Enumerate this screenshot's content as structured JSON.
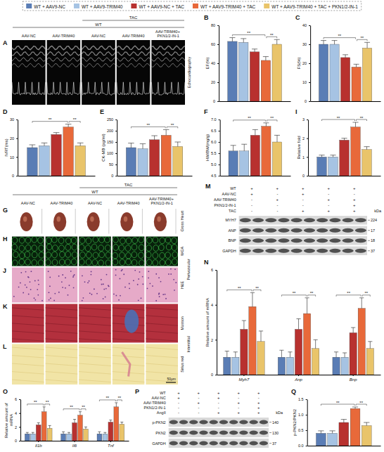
{
  "figure_legend": {
    "items": [
      {
        "name": "WT + AAV9-NC",
        "color": "#5a7db5"
      },
      {
        "name": "WT + AAV9-TRIM40",
        "color": "#a6c3e3"
      },
      {
        "name": "WT + AAV9-NC + TAC",
        "color": "#b8312f"
      },
      {
        "name": "WT + AAV9-TRIM40 + TAC",
        "color": "#e8693a"
      },
      {
        "name": "WT + AAV9-TRIM40 + TAC + PKN1/2-IN-1",
        "color": "#e9c46a"
      }
    ]
  },
  "image_panels": [
    {
      "columns": [
        "AAV-NC",
        "AAV-TRIM40",
        "AAV-NC",
        "AAV-TRIM40",
        "AAV-TRIM40+ PKN1/2-IN-1"
      ],
      "genotype": "WT",
      "treatment": {
        "label": "TAC",
        "columns": [
          2,
          4
        ]
      },
      "rows": [
        {
          "letter": "A",
          "label": "Echocardiography"
        }
      ]
    },
    {
      "columns": [
        "AAV-NC",
        "AAV-TRIM40",
        "AAV-NC",
        "AAV-TRIM40",
        "AAV-TRIM40+ PKN1/2-IN-1"
      ],
      "genotype": "WT",
      "treatment": {
        "label": "TAC",
        "columns": [
          2,
          4
        ]
      },
      "rows": [
        {
          "letter": "G",
          "label": "Gross Heart"
        },
        {
          "letter": "H",
          "label": "WGA"
        },
        {
          "letter": "J",
          "label": "H&E"
        },
        {
          "letter": "K",
          "label": "Masson"
        },
        {
          "letter": "L",
          "label": "Sirius red"
        }
      ],
      "row_groups": [
        {
          "label": "Perivascular",
          "rows": [
            1,
            2
          ]
        },
        {
          "label": "Interstitial",
          "rows": [
            3,
            4
          ]
        }
      ],
      "scale_bar": "50μm"
    }
  ],
  "blots": [
    {
      "letter": "M",
      "conditions": [
        {
          "label": "WT",
          "signs": [
            "+",
            "+",
            "+",
            "+",
            "+"
          ]
        },
        {
          "label": "AAV-NC",
          "signs": [
            "+",
            "-",
            "+",
            "-",
            "-"
          ]
        },
        {
          "label": "AAV-TRIM40",
          "signs": [
            "-",
            "+",
            "-",
            "+",
            "+"
          ]
        },
        {
          "label": "PKN1/2-IN-1",
          "signs": [
            "-",
            "-",
            "-",
            "-",
            "+"
          ]
        },
        {
          "label": "TAC",
          "signs": [
            "-",
            "-",
            "+",
            "+",
            "+"
          ]
        }
      ],
      "bands": [
        {
          "label": "MYH7",
          "kda": 224
        },
        {
          "label": "ANP",
          "kda": 17
        },
        {
          "label": "BNP",
          "kda": 18
        },
        {
          "label": "GAPDH",
          "kda": 37
        }
      ],
      "unit": "kDa"
    },
    {
      "letter": "P",
      "conditions": [
        {
          "label": "WT",
          "signs": [
            "+",
            "+",
            "+",
            "+",
            "+"
          ]
        },
        {
          "label": "AAV-NC",
          "signs": [
            "+",
            "-",
            "+",
            "-",
            "-"
          ]
        },
        {
          "label": "AAV-TRIM40",
          "signs": [
            "-",
            "+",
            "-",
            "+",
            "+"
          ]
        },
        {
          "label": "PKN1/2-IN-1",
          "signs": [
            "-",
            "-",
            "-",
            "-",
            "+"
          ]
        },
        {
          "label": "AngII",
          "signs": [
            "-",
            "-",
            "+",
            "+",
            "+"
          ]
        }
      ],
      "bands": [
        {
          "label": "p-PKN2",
          "kda": 140
        },
        {
          "label": "PKN2",
          "kda": 130
        },
        {
          "label": "GAPDH",
          "kda": 37
        }
      ],
      "unit": "kDa"
    }
  ],
  "chart_data": [
    {
      "panel": "B",
      "type": "bar",
      "y_label": "EF(%)",
      "categories": [
        null
      ],
      "tick_labels": "y",
      "series": [
        {
          "color": "#5a7db5",
          "values": [
            63
          ],
          "errors": [
            4
          ]
        },
        {
          "color": "#a6c3e3",
          "values": [
            62
          ],
          "errors": [
            4
          ]
        },
        {
          "color": "#b8312f",
          "values": [
            52
          ],
          "errors": [
            3
          ]
        },
        {
          "color": "#e8693a",
          "values": [
            43
          ],
          "errors": [
            4
          ]
        },
        {
          "color": "#e9c46a",
          "values": [
            60
          ],
          "errors": [
            5
          ]
        }
      ],
      "ylim": [
        0,
        80
      ],
      "yticks": [
        0,
        20,
        40,
        60,
        80
      ],
      "annotations": [
        {
          "text": "**",
          "bars": [
            0,
            3
          ]
        },
        {
          "text": "**",
          "bars": [
            3,
            4
          ]
        }
      ]
    },
    {
      "panel": "C",
      "type": "bar",
      "y_label": "FS(%)",
      "categories": [
        null
      ],
      "tick_labels": "y",
      "series": [
        {
          "color": "#5a7db5",
          "values": [
            30
          ],
          "errors": [
            2
          ]
        },
        {
          "color": "#a6c3e3",
          "values": [
            30
          ],
          "errors": [
            2
          ]
        },
        {
          "color": "#b8312f",
          "values": [
            23
          ],
          "errors": [
            1.5
          ]
        },
        {
          "color": "#e8693a",
          "values": [
            18
          ],
          "errors": [
            1.5
          ]
        },
        {
          "color": "#e9c46a",
          "values": [
            28
          ],
          "errors": [
            3
          ]
        }
      ],
      "ylim": [
        0,
        40
      ],
      "yticks": [
        0,
        10,
        20,
        30,
        40
      ],
      "annotations": [
        {
          "text": "**",
          "bars": [
            0,
            3
          ]
        },
        {
          "text": "**",
          "bars": [
            3,
            4
          ]
        }
      ]
    },
    {
      "panel": "D",
      "type": "bar",
      "y_label": "IVRT(ms)",
      "categories": [
        null
      ],
      "tick_labels": "y",
      "series": [
        {
          "color": "#5a7db5",
          "values": [
            15
          ],
          "errors": [
            1.5
          ]
        },
        {
          "color": "#a6c3e3",
          "values": [
            16
          ],
          "errors": [
            1.5
          ]
        },
        {
          "color": "#b8312f",
          "values": [
            22
          ],
          "errors": [
            1
          ]
        },
        {
          "color": "#e8693a",
          "values": [
            26
          ],
          "errors": [
            1.5
          ]
        },
        {
          "color": "#e9c46a",
          "values": [
            16
          ],
          "errors": [
            1.5
          ]
        }
      ],
      "ylim": [
        0,
        30
      ],
      "yticks": [
        0,
        10,
        20,
        30
      ],
      "annotations": [
        {
          "text": "**",
          "bars": [
            0,
            3
          ]
        },
        {
          "text": "**",
          "bars": [
            3,
            4
          ]
        }
      ]
    },
    {
      "panel": "E",
      "type": "bar",
      "y_label": "CK-MB (pg/ml)",
      "categories": [
        null
      ],
      "tick_labels": "y",
      "series": [
        {
          "color": "#5a7db5",
          "values": [
            125
          ],
          "errors": [
            20
          ]
        },
        {
          "color": "#a6c3e3",
          "values": [
            120
          ],
          "errors": [
            22
          ]
        },
        {
          "color": "#b8312f",
          "values": [
            160
          ],
          "errors": [
            18
          ]
        },
        {
          "color": "#e8693a",
          "values": [
            180
          ],
          "errors": [
            25
          ]
        },
        {
          "color": "#e9c46a",
          "values": [
            130
          ],
          "errors": [
            20
          ]
        }
      ],
      "ylim": [
        0,
        250
      ],
      "yticks": [
        0,
        50,
        100,
        150,
        200,
        250
      ],
      "annotations": [
        {
          "text": "**",
          "bars": [
            0,
            3
          ]
        },
        {
          "text": "**",
          "bars": [
            3,
            4
          ]
        }
      ]
    },
    {
      "panel": "F",
      "type": "bar",
      "y_label": "HW/BW(mg/g)",
      "categories": [
        null
      ],
      "tick_labels": "y",
      "series": [
        {
          "color": "#5a7db5",
          "values": [
            5.6
          ],
          "errors": [
            0.25
          ]
        },
        {
          "color": "#a6c3e3",
          "values": [
            5.6
          ],
          "errors": [
            0.3
          ]
        },
        {
          "color": "#b8312f",
          "values": [
            6.3
          ],
          "errors": [
            0.25
          ]
        },
        {
          "color": "#e8693a",
          "values": [
            6.7
          ],
          "errors": [
            0.15
          ]
        },
        {
          "color": "#e9c46a",
          "values": [
            6.0
          ],
          "errors": [
            0.3
          ]
        }
      ],
      "ylim": [
        4.5,
        7.0
      ],
      "yticks": [
        4.5,
        {
          "value": 5,
          "label": "5.0"
        },
        5.5,
        {
          "value": 6,
          "label": "6.0"
        },
        6.5,
        {
          "value": 7,
          "label": "7.0"
        }
      ],
      "annotations": [
        {
          "text": "**",
          "bars": [
            0,
            3
          ]
        },
        {
          "text": "**",
          "bars": [
            3,
            4
          ]
        }
      ]
    },
    {
      "panel": "I",
      "type": "bar",
      "y_label": "Relative fold",
      "categories": [
        null
      ],
      "tick_labels": "y",
      "series": [
        {
          "color": "#5a7db5",
          "values": [
            1.0
          ],
          "errors": [
            0.1
          ]
        },
        {
          "color": "#a6c3e3",
          "values": [
            1.0
          ],
          "errors": [
            0.1
          ]
        },
        {
          "color": "#b8312f",
          "values": [
            1.9
          ],
          "errors": [
            0.1
          ]
        },
        {
          "color": "#e8693a",
          "values": [
            2.6
          ],
          "errors": [
            0.25
          ]
        },
        {
          "color": "#e9c46a",
          "values": [
            1.4
          ],
          "errors": [
            0.15
          ]
        }
      ],
      "ylim": [
        0,
        3
      ],
      "yticks": [
        0,
        1,
        2,
        3
      ],
      "annotations": [
        {
          "text": "**",
          "bars": [
            0,
            3
          ]
        },
        {
          "text": "**",
          "bars": [
            3,
            4
          ]
        }
      ]
    },
    {
      "panel": "N",
      "type": "bar",
      "y_label": "Relative amount of mRNA",
      "categories": [
        "Myh7",
        "Anp",
        "Bnp"
      ],
      "series": [
        {
          "color": "#5a7db5",
          "values": [
            1.0,
            1.0,
            1.0
          ],
          "errors": [
            0.35,
            0.4,
            0.3
          ]
        },
        {
          "color": "#a6c3e3",
          "values": [
            1.0,
            1.0,
            1.0
          ],
          "errors": [
            0.3,
            0.3,
            0.25
          ]
        },
        {
          "color": "#b8312f",
          "values": [
            2.6,
            2.6,
            2.4
          ],
          "errors": [
            0.5,
            0.6,
            0.3
          ]
        },
        {
          "color": "#e8693a",
          "values": [
            3.9,
            3.5,
            3.8
          ],
          "errors": [
            0.8,
            0.9,
            0.6
          ]
        },
        {
          "color": "#e9c46a",
          "values": [
            1.9,
            1.5,
            1.5
          ],
          "errors": [
            0.6,
            0.5,
            0.4
          ]
        }
      ],
      "ylim": [
        0,
        6
      ],
      "yticks": [
        0,
        2,
        4,
        6
      ],
      "annotations": [
        {
          "text": "**",
          "category": 0,
          "bars": [
            0,
            3
          ]
        },
        {
          "text": "**",
          "category": 0,
          "bars": [
            3,
            4
          ]
        },
        {
          "text": "**",
          "category": 1,
          "bars": [
            0,
            3
          ]
        },
        {
          "text": "**",
          "category": 1,
          "bars": [
            3,
            4
          ]
        },
        {
          "text": "**",
          "category": 2,
          "bars": [
            0,
            3
          ]
        },
        {
          "text": "**",
          "category": 2,
          "bars": [
            3,
            4
          ]
        }
      ]
    },
    {
      "panel": "O",
      "type": "bar",
      "y_label": "Relative amount of mRNA",
      "categories": [
        "Il1b",
        "Il6",
        "Tnf"
      ],
      "series": [
        {
          "color": "#5a7db5",
          "values": [
            1.0,
            1.0,
            1.0
          ],
          "errors": [
            0.2,
            0.3,
            0.3
          ]
        },
        {
          "color": "#a6c3e3",
          "values": [
            1.0,
            1.0,
            1.0
          ],
          "errors": [
            0.2,
            0.2,
            0.2
          ]
        },
        {
          "color": "#b8312f",
          "values": [
            2.3,
            2.6,
            2.7
          ],
          "errors": [
            0.3,
            0.5,
            0.3
          ]
        },
        {
          "color": "#e8693a",
          "values": [
            4.2,
            3.7,
            4.9
          ],
          "errors": [
            0.7,
            0.5,
            0.6
          ]
        },
        {
          "color": "#e9c46a",
          "values": [
            1.8,
            1.7,
            2.4
          ],
          "errors": [
            0.4,
            0.3,
            0.3
          ]
        }
      ],
      "ylim": [
        0,
        6
      ],
      "yticks": [
        0,
        2,
        4,
        6
      ],
      "annotations": [
        {
          "text": "**",
          "category": 0,
          "bars": [
            0,
            3
          ]
        },
        {
          "text": "**",
          "category": 0,
          "bars": [
            3,
            4
          ]
        },
        {
          "text": "**",
          "category": 1,
          "bars": [
            0,
            3
          ]
        },
        {
          "text": "**",
          "category": 1,
          "bars": [
            3,
            4
          ]
        },
        {
          "text": "**",
          "category": 2,
          "bars": [
            0,
            3
          ]
        },
        {
          "text": "**",
          "category": 2,
          "bars": [
            3,
            4
          ]
        }
      ]
    },
    {
      "panel": "Q",
      "type": "bar",
      "y_label": "p-PKN2/PKN2",
      "categories": [
        null
      ],
      "tick_labels": "y",
      "series": [
        {
          "color": "#5a7db5",
          "values": [
            0.4
          ],
          "errors": [
            0.08
          ]
        },
        {
          "color": "#a6c3e3",
          "values": [
            0.4
          ],
          "errors": [
            0.08
          ]
        },
        {
          "color": "#b8312f",
          "values": [
            0.75
          ],
          "errors": [
            0.1
          ]
        },
        {
          "color": "#e8693a",
          "values": [
            1.2
          ],
          "errors": [
            0.05
          ]
        },
        {
          "color": "#e9c46a",
          "values": [
            0.65
          ],
          "errors": [
            0.1
          ]
        }
      ],
      "ylim": [
        0,
        1.5
      ],
      "yticks": [
        {
          "value": 0,
          "label": "0.0"
        },
        0.5,
        {
          "value": 1,
          "label": "1.0"
        },
        1.5
      ],
      "annotations": [
        {
          "text": "**",
          "bars": [
            0,
            3
          ]
        },
        {
          "text": "**",
          "bars": [
            3,
            4
          ]
        }
      ]
    }
  ]
}
